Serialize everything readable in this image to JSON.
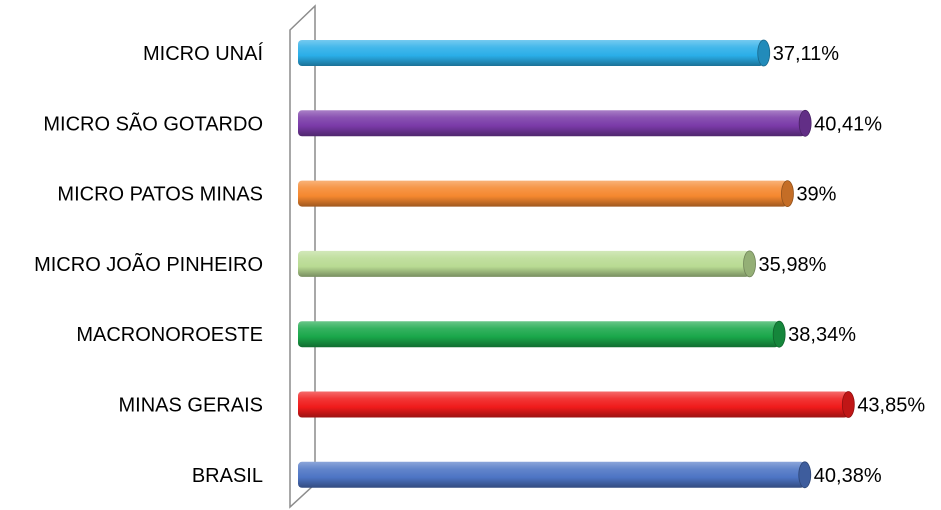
{
  "chart_data": {
    "type": "bar",
    "orientation": "horizontal",
    "style": "3d-cylinder",
    "title": "",
    "xlabel": "",
    "ylabel": "",
    "xlim": [
      0,
      100
    ],
    "grid": false,
    "legend": "none",
    "categories": [
      "MICRO UNAÍ",
      "MICRO SÃO GOTARDO",
      "MICRO PATOS  MINAS",
      "MICRO JOÃO PINHEIRO",
      "MACRONOROESTE",
      "MINAS GERAIS",
      "BRASIL"
    ],
    "values": [
      37.11,
      40.41,
      39,
      35.98,
      38.34,
      43.85,
      40.38
    ],
    "value_labels": [
      "37,11%",
      "40,41%",
      "39%",
      "35,98%",
      "38,34%",
      "43,85%",
      "40,38%"
    ],
    "colors": [
      "#2aaee8",
      "#7a3aa8",
      "#f5882f",
      "#b9db93",
      "#1aa74a",
      "#f01b1b",
      "#4d74c4"
    ]
  }
}
